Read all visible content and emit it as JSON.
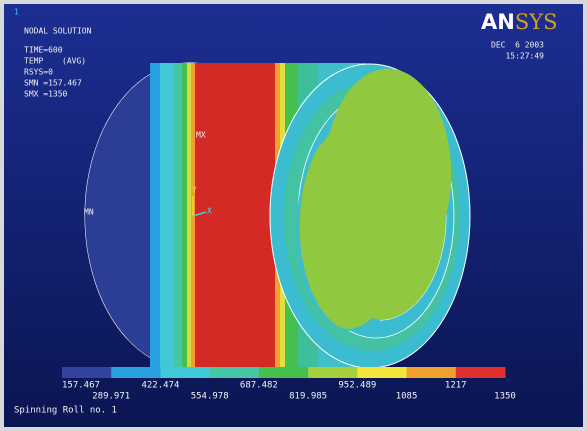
{
  "window_number": "1",
  "header": {
    "title": "NODAL SOLUTION",
    "time": "TIME=600",
    "quantity": "TEMP",
    "avg": "(AVG)",
    "rsys": "RSYS=0",
    "smn": "SMN =157.467",
    "smx": "SMX =1350"
  },
  "logo": [
    "AN",
    "SYS"
  ],
  "date": "DEC  6 2003",
  "clock": "15:27:49",
  "markers": {
    "max": "MX",
    "min": "MN",
    "axis_y": "Y",
    "axis_x": "X"
  },
  "legend": {
    "colors": [
      "#3344a0",
      "#2a9fdf",
      "#3fc8d6",
      "#47c6a6",
      "#45bf4e",
      "#a6cf3e",
      "#f2e63a",
      "#f0a02e",
      "#e0302c"
    ],
    "labels": [
      157.467,
      289.971,
      422.474,
      554.978,
      687.482,
      819.985,
      952.489,
      1085,
      1217,
      1350
    ]
  },
  "caption": "Spinning Roll no. 1"
}
